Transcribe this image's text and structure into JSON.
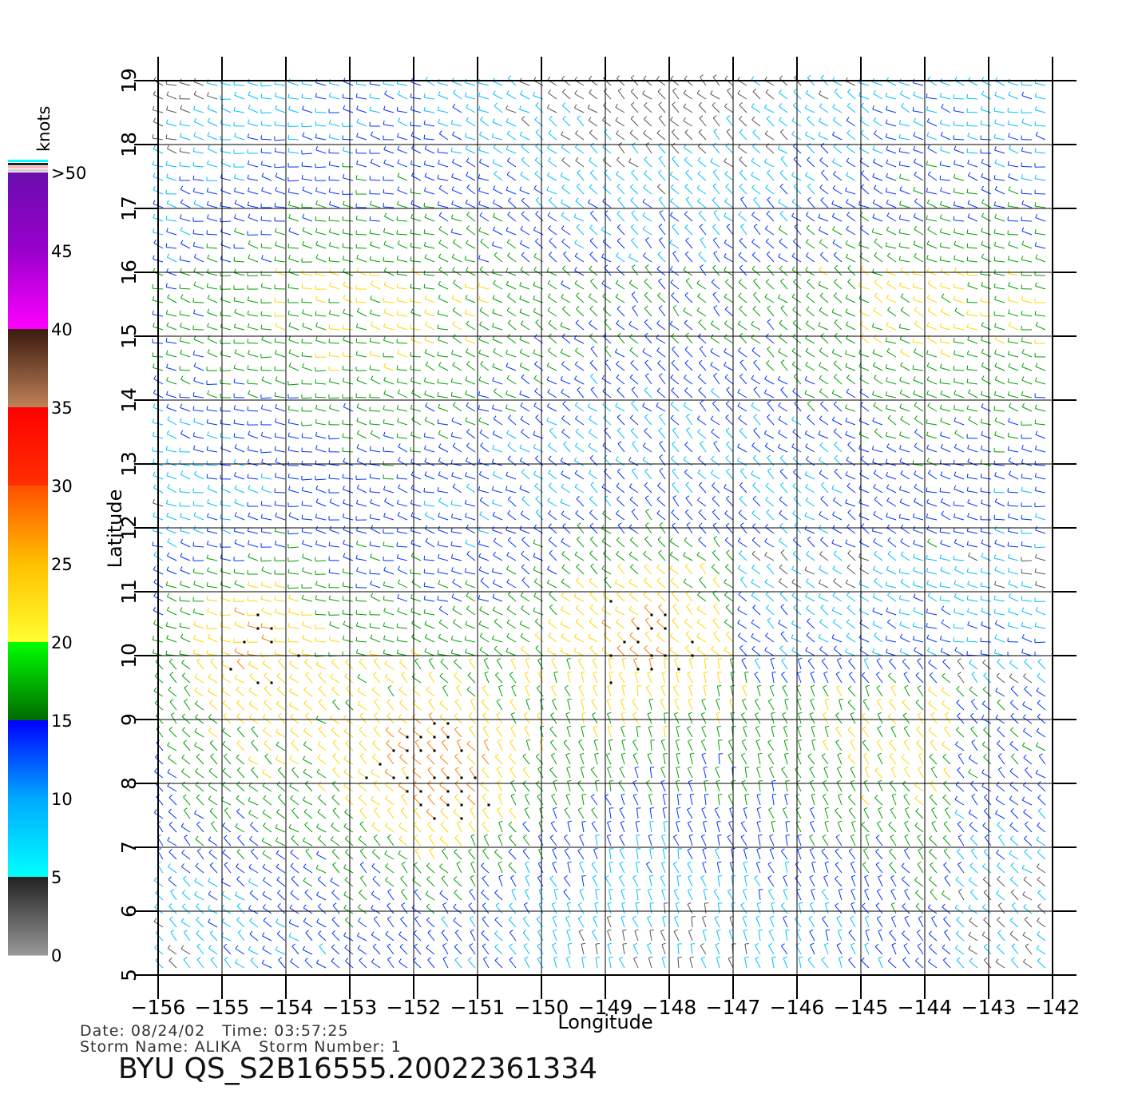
{
  "map": {
    "x_axis_label": "Longitude",
    "y_axis_label": "Latitude",
    "lon_range": [
      -156,
      -141.5
    ],
    "lat_range": [
      5,
      19
    ],
    "lon_ticks": [
      "-156",
      "-155",
      "-154",
      "-153",
      "-152",
      "-151",
      "-150",
      "-149",
      "-148",
      "-147",
      "-146",
      "-145",
      "-144",
      "-143",
      "-142"
    ],
    "lat_ticks": [
      "5",
      "6",
      "7",
      "8",
      "9",
      "10",
      "11",
      "12",
      "13",
      "14",
      "15",
      "16",
      "17",
      "18",
      "19"
    ],
    "grid": true,
    "field": "wind vector barbs"
  },
  "colorbar": {
    "unit_label": "knots",
    "tick_labels": [
      "0",
      "5",
      "10",
      "15",
      "20",
      "25",
      "30",
      "35",
      "40",
      "45",
      ">50"
    ],
    "colors": {
      "0-5": "#555555",
      "5-10": "#00bfff",
      "10-15": "#0033ff",
      "15-20": "#00a000",
      "20-25": "#ffd700",
      "25-30": "#ff7f00",
      "30-35": "#ff2000",
      "35-40": "#8b4513",
      "40-45": "#ff00ff",
      "45-50": "#9900cc",
      ">50": "#6a0dad"
    }
  },
  "meta": {
    "line1": "Date: 08/24/02   Time: 03:57:25",
    "line2": "Storm Name: ALIKA   Storm Number: 1",
    "product_id": "BYU QS_S2B16555.20022361334"
  }
}
